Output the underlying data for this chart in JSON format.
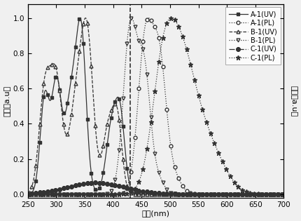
{
  "title": "",
  "xlabel": "波长(nm)",
  "ylabel_left": "吸收（a.u）",
  "ylabel_right": "发射（a.u）",
  "xlim": [
    250,
    700
  ],
  "ylim": [
    -0.02,
    1.08
  ],
  "yticks": [
    0.0,
    0.2,
    0.4,
    0.6,
    0.8,
    1.0
  ],
  "xticks": [
    250,
    300,
    350,
    400,
    450,
    500,
    550,
    600,
    650,
    700
  ],
  "legend_entries": [
    "A-1(UV)",
    "A-1(PL)",
    "B-1(UV)",
    "B-1(PL)",
    "C-1(UV)",
    "C-1(PL)"
  ],
  "background_color": "#f0f0f0",
  "curve_color": "#333333",
  "dashed_line_x": 430
}
